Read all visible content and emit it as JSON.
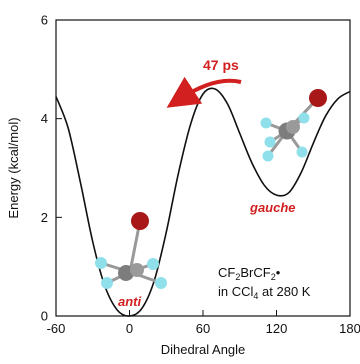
{
  "chart_data": {
    "type": "line",
    "xlabel": "Dihedral Angle",
    "ylabel": "Energy (kcal/mol)",
    "xlim": [
      -60,
      180
    ],
    "ylim": [
      0,
      6
    ],
    "xticks": [
      -60,
      0,
      60,
      120,
      180
    ],
    "yticks": [
      0,
      2,
      4,
      6
    ],
    "series": [
      {
        "x": [
          -60,
          -50,
          -40,
          -30,
          -20,
          -10,
          0,
          10,
          20,
          30,
          40,
          50,
          60,
          70,
          80,
          90,
          100,
          110,
          120,
          130,
          140,
          150,
          160,
          170,
          180
        ],
        "y": [
          4.45,
          3.8,
          2.7,
          1.5,
          0.6,
          0.12,
          0.0,
          0.15,
          0.7,
          1.7,
          2.9,
          3.9,
          4.5,
          4.6,
          4.3,
          3.7,
          3.1,
          2.65,
          2.45,
          2.5,
          2.9,
          3.5,
          4.05,
          4.4,
          4.55
        ],
        "color": "#111111"
      }
    ],
    "annotations": {
      "rate_label": "47 ps",
      "gauche_label": "gauche",
      "anti_label": "anti",
      "note_species": {
        "a": "CF",
        "b": "2",
        "c": "BrCF",
        "d": "2",
        "e": "•"
      },
      "note_solvent": {
        "a": "in CCl",
        "b": "4",
        "c": " at 280 K"
      },
      "accent_color": "#d21f1f"
    },
    "grid": false,
    "legend": "none"
  }
}
